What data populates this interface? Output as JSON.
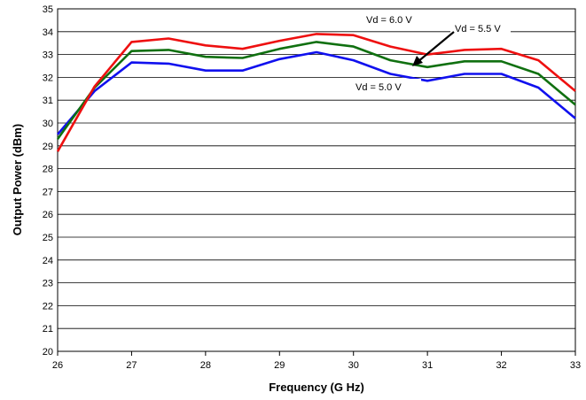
{
  "chart_data": {
    "type": "line",
    "xlabel": "Frequency (G Hz)",
    "ylabel": "Output Power (dBm)",
    "xlim": [
      26,
      33
    ],
    "ylim": [
      20,
      35
    ],
    "x_ticks": [
      "26",
      "27",
      "28",
      "29",
      "30",
      "31",
      "32",
      "33"
    ],
    "y_ticks": [
      "20",
      "21",
      "22",
      "23",
      "24",
      "25",
      "26",
      "27",
      "28",
      "29",
      "30",
      "31",
      "32",
      "33",
      "34",
      "35"
    ],
    "grid": "horizontal",
    "x": [
      26,
      26.5,
      27,
      27.5,
      28,
      28.5,
      29,
      29.5,
      30,
      30.5,
      31,
      31.5,
      32,
      32.5,
      33
    ],
    "series": [
      {
        "name": "Vd = 5.0 V",
        "color": "#1010ee",
        "values": [
          29.5,
          31.4,
          32.65,
          32.6,
          32.3,
          32.3,
          32.8,
          33.1,
          32.75,
          32.15,
          31.85,
          32.15,
          32.15,
          31.55,
          30.2
        ]
      },
      {
        "name": "Vd = 5.5 V",
        "color": "#107010",
        "values": [
          29.3,
          31.55,
          33.15,
          33.2,
          32.9,
          32.85,
          33.25,
          33.55,
          33.35,
          32.75,
          32.45,
          32.7,
          32.7,
          32.15,
          30.8
        ]
      },
      {
        "name": "Vd = 6.0 V",
        "color": "#ee1010",
        "values": [
          28.75,
          31.6,
          33.55,
          33.7,
          33.4,
          33.25,
          33.6,
          33.9,
          33.85,
          33.35,
          33.0,
          33.2,
          33.25,
          32.75,
          31.4
        ]
      }
    ],
    "annotations": [
      {
        "text": "Vd =  6.0 V"
      },
      {
        "text": "Vd = 5.5 V"
      },
      {
        "text": "Vd  = 5.0 V"
      }
    ]
  }
}
